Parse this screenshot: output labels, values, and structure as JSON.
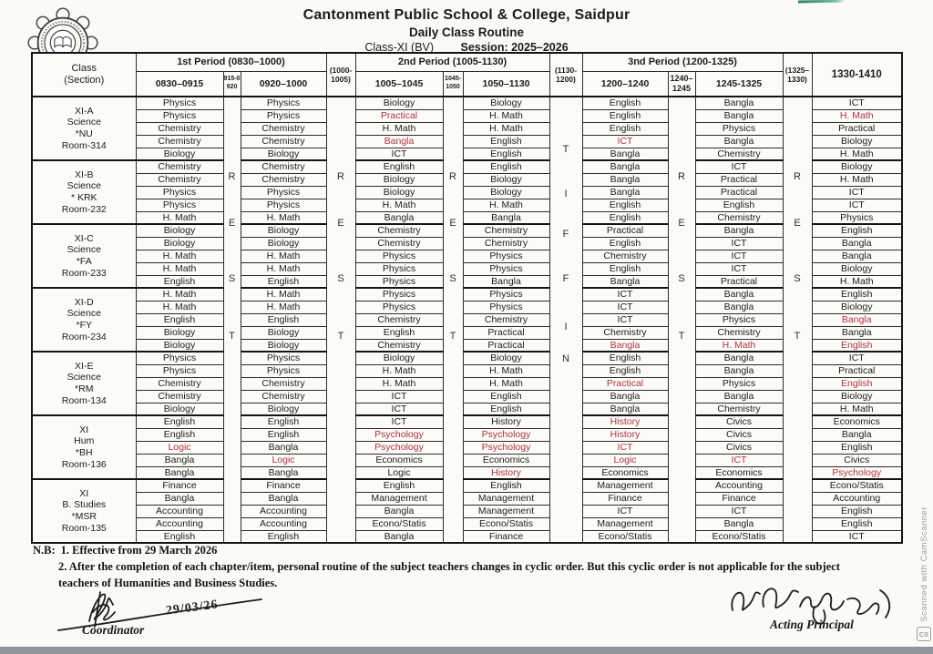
{
  "header": {
    "title": "Cantonment Public School & College, Saidpur",
    "subtitle": "Daily Class Routine",
    "class_label": "Class-XI (BV)",
    "session_label": "Session: 2025–2026"
  },
  "table": {
    "corner": [
      "Class",
      "(Section)"
    ],
    "period_headers": [
      "1st Period (0830–1000)",
      "2nd Period (1005-1130)",
      "3nd Period (1200-1325)"
    ],
    "break_headers": [
      "(1000-1005)",
      "(1130-1200)",
      "(1325–1330)"
    ],
    "time_headers": [
      "0830–0915",
      "915-0920",
      "0920–1000",
      "1005–1045",
      "1045-1050",
      "1050–1130",
      "1200–1240",
      "1240–1245",
      "1245-1325"
    ],
    "last_col_header": "1330-1410",
    "break_letters": {
      "rest": [
        "R",
        "E",
        "S",
        "T"
      ],
      "tiffin": [
        "T",
        "I",
        "F",
        "F",
        "I",
        "N"
      ]
    },
    "break_column_types": [
      "rest",
      "rest",
      "rest",
      "tiffin",
      "rest",
      "rest"
    ],
    "classes": [
      {
        "name": [
          "XI-A",
          "Science",
          "*NU",
          "Room-314"
        ],
        "rows": [
          [
            "Physics",
            "Physics",
            "Biology",
            "Biology",
            "English",
            "Bangla",
            "ICT"
          ],
          [
            "Physics",
            "Physics",
            "Practical",
            "H. Math",
            "English",
            "Bangla",
            "H. Math"
          ],
          [
            "Chemistry",
            "Chemistry",
            "H. Math",
            "H. Math",
            "English",
            "Physics",
            "Practical"
          ],
          [
            "Chemistry",
            "Chemistry",
            "Bangla",
            "English",
            "ICT",
            "Bangla",
            "Biology"
          ],
          [
            "Biology",
            "Biology",
            "ICT",
            "English",
            "Bangla",
            "Chemistry",
            "H. Math"
          ]
        ]
      },
      {
        "name": [
          "XI-B",
          "Science",
          "* KRK",
          "Room-232"
        ],
        "rows": [
          [
            "Chemistry",
            "Chemistry",
            "English",
            "English",
            "Bangla",
            "ICT",
            "Biology"
          ],
          [
            "Chemistry",
            "Chemistry",
            "Biology",
            "Biology",
            "Bangla",
            "Practical",
            "H. Math"
          ],
          [
            "Physics",
            "Physics",
            "Biology",
            "Biology",
            "Bangla",
            "Practical",
            "ICT"
          ],
          [
            "Physics",
            "Physics",
            "H. Math",
            "H. Math",
            "English",
            "English",
            "ICT"
          ],
          [
            "H. Math",
            "H. Math",
            "Bangla",
            "Bangla",
            "English",
            "Chemistry",
            "Physics"
          ]
        ]
      },
      {
        "name": [
          "XI-C",
          "Science",
          "*FA",
          "Room-233"
        ],
        "rows": [
          [
            "Biology",
            "Biology",
            "Chemistry",
            "Chemistry",
            "Practical",
            "Bangla",
            "English"
          ],
          [
            "Biology",
            "Biology",
            "Chemistry",
            "Chemistry",
            "English",
            "ICT",
            "Bangla"
          ],
          [
            "H. Math",
            "H. Math",
            "Physics",
            "Physics",
            "Chemistry",
            "ICT",
            "Bangla"
          ],
          [
            "H. Math",
            "H. Math",
            "Physics",
            "Physics",
            "English",
            "ICT",
            "Biology"
          ],
          [
            "English",
            "English",
            "Physics",
            "Bangla",
            "Bangla",
            "Practical",
            "H. Math"
          ]
        ]
      },
      {
        "name": [
          "XI-D",
          "Science",
          "*FY",
          "Room-234"
        ],
        "rows": [
          [
            "H. Math",
            "H. Math",
            "Physics",
            "Physics",
            "ICT",
            "Bangla",
            "English"
          ],
          [
            "H. Math",
            "H. Math",
            "Physics",
            "Physics",
            "ICT",
            "Bangla",
            "Biology"
          ],
          [
            "English",
            "English",
            "Chemistry",
            "Chemistry",
            "ICT",
            "Physics",
            "Bangla"
          ],
          [
            "Biology",
            "Biology",
            "English",
            "Practical",
            "Chemistry",
            "Chemistry",
            "Bangla"
          ],
          [
            "Biology",
            "Biology",
            "Chemistry",
            "Practical",
            "Bangla",
            "H. Math",
            "English"
          ]
        ]
      },
      {
        "name": [
          "XI-E",
          "Science",
          "*RM",
          "Room-134"
        ],
        "rows": [
          [
            "Physics",
            "Physics",
            "Biology",
            "Biology",
            "English",
            "Bangla",
            "ICT"
          ],
          [
            "Physics",
            "Physics",
            "H. Math",
            "H. Math",
            "English",
            "Bangla",
            "Practical"
          ],
          [
            "Chemistry",
            "Chemistry",
            "H. Math",
            "H. Math",
            "Practical",
            "Physics",
            "English"
          ],
          [
            "Chemistry",
            "Chemistry",
            "ICT",
            "English",
            "Bangla",
            "Bangla",
            "Biology"
          ],
          [
            "Biology",
            "Biology",
            "ICT",
            "English",
            "Bangla",
            "Chemistry",
            "H. Math"
          ]
        ]
      },
      {
        "name": [
          "XI",
          "Hum",
          "*BH",
          "Room-136"
        ],
        "rows": [
          [
            "English",
            "English",
            "ICT",
            "History",
            "History",
            "Civics",
            "Economics"
          ],
          [
            "English",
            "English",
            "Psychology",
            "Psychology",
            "History",
            "Civics",
            "Bangla"
          ],
          [
            "Logic",
            "Bangla",
            "Psychology",
            "Psychology",
            "ICT",
            "Civics",
            "English"
          ],
          [
            "Bangla",
            "Logic",
            "Economics",
            "Economics",
            "Logic",
            "ICT",
            "Civics"
          ],
          [
            "Bangla",
            "Bangla",
            "Logic",
            "History",
            "Economics",
            "Economics",
            "Psychology"
          ]
        ]
      },
      {
        "name": [
          "XI",
          "B. Studies",
          "*MSR",
          "Room-135"
        ],
        "rows": [
          [
            "Finance",
            "Finance",
            "English",
            "English",
            "Management",
            "Accounting",
            "Econo/Statis"
          ],
          [
            "Bangla",
            "Bangla",
            "Management",
            "Management",
            "Finance",
            "Finance",
            "Accounting"
          ],
          [
            "Accounting",
            "Accounting",
            "Bangla",
            "Management",
            "ICT",
            "ICT",
            "English"
          ],
          [
            "Accounting",
            "Accounting",
            "Econo/Statis",
            "Econo/Statis",
            "Management",
            "Bangla",
            "English"
          ],
          [
            "English",
            "English",
            "Bangla",
            "Finance",
            "Econo/Statis",
            "Econo/Statis",
            "ICT"
          ]
        ]
      }
    ],
    "red_cells": [
      [
        0,
        1,
        2
      ],
      [
        0,
        3,
        2
      ],
      [
        0,
        3,
        4
      ],
      [
        0,
        1,
        6
      ],
      [
        3,
        2,
        6
      ],
      [
        3,
        4,
        4
      ],
      [
        3,
        4,
        5
      ],
      [
        3,
        4,
        6
      ],
      [
        4,
        2,
        4
      ],
      [
        4,
        2,
        6
      ],
      [
        5,
        2,
        0
      ],
      [
        5,
        3,
        1
      ],
      [
        5,
        1,
        2
      ],
      [
        5,
        2,
        2
      ],
      [
        5,
        1,
        3
      ],
      [
        5,
        2,
        3
      ],
      [
        5,
        4,
        3
      ],
      [
        5,
        0,
        4
      ],
      [
        5,
        1,
        4
      ],
      [
        5,
        2,
        4
      ],
      [
        5,
        3,
        4
      ],
      [
        5,
        3,
        5
      ],
      [
        5,
        4,
        6
      ]
    ]
  },
  "notes": {
    "nb": "N.B:",
    "line1": "1. Effective from 29 March 2026",
    "line2": "2. After the completion of each chapter/item, personal routine of the subject teachers changes in cyclic order. But this cyclic order is not applicable for the subject",
    "line3": "teachers of Humanities and Business Studies."
  },
  "footer": {
    "coordinator_label": "Coordinator",
    "date": "29/03/26",
    "principal_label": "Acting Principal"
  },
  "watermark": {
    "text": "Scanned with CamScanner",
    "badge": "CS"
  }
}
